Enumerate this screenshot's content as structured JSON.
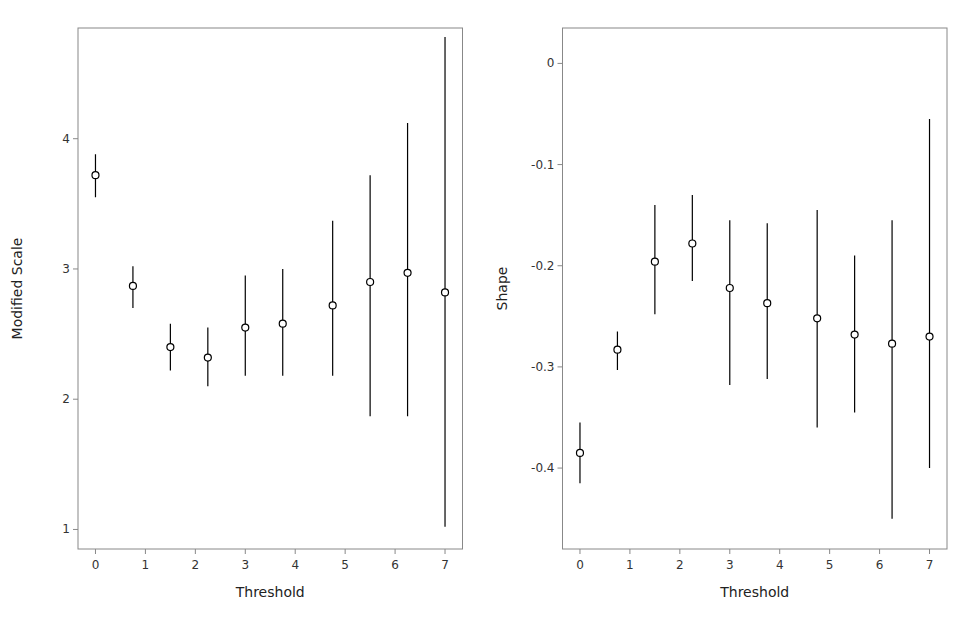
{
  "chart_data": [
    {
      "type": "scatter",
      "x_label": "Threshold",
      "y_label": "Modified Scale",
      "x": [
        0,
        0.75,
        1.5,
        2.25,
        3.0,
        3.75,
        4.75,
        5.5,
        6.25,
        7.0
      ],
      "values": [
        3.72,
        2.87,
        2.4,
        2.32,
        2.55,
        2.58,
        2.72,
        2.9,
        2.97,
        2.82
      ],
      "lower": [
        3.55,
        2.7,
        2.22,
        2.1,
        2.18,
        2.18,
        2.18,
        1.87,
        1.87,
        1.02
      ],
      "upper": [
        3.88,
        3.02,
        2.58,
        2.55,
        2.95,
        3.0,
        3.37,
        3.72,
        4.12,
        4.78
      ],
      "color": "black",
      "marker": "circle",
      "xlim": [
        -0.35,
        7.35
      ],
      "xticks": [
        0,
        1,
        2,
        3,
        4,
        5,
        6,
        7
      ],
      "ylim": [
        0.85,
        4.85
      ],
      "yticks": [
        1,
        2,
        3,
        4
      ]
    },
    {
      "type": "scatter",
      "x_label": "Threshold",
      "y_label": "Shape",
      "x": [
        0,
        0.75,
        1.5,
        2.25,
        3.0,
        3.75,
        4.75,
        5.5,
        6.25,
        7.0
      ],
      "values": [
        -0.385,
        -0.283,
        -0.196,
        -0.178,
        -0.222,
        -0.237,
        -0.252,
        -0.268,
        -0.277,
        -0.27
      ],
      "lower": [
        -0.415,
        -0.303,
        -0.248,
        -0.215,
        -0.318,
        -0.312,
        -0.36,
        -0.345,
        -0.45,
        -0.4
      ],
      "upper": [
        -0.355,
        -0.265,
        -0.14,
        -0.13,
        -0.155,
        -0.158,
        -0.145,
        -0.19,
        -0.155,
        -0.055
      ],
      "color": "black",
      "marker": "circle",
      "xlim": [
        -0.35,
        7.35
      ],
      "xticks": [
        0,
        1,
        2,
        3,
        4,
        5,
        6,
        7
      ],
      "ylim": [
        -0.48,
        0.035
      ],
      "yticks": [
        -0.4,
        -0.3,
        -0.2,
        -0.1,
        0
      ]
    }
  ]
}
